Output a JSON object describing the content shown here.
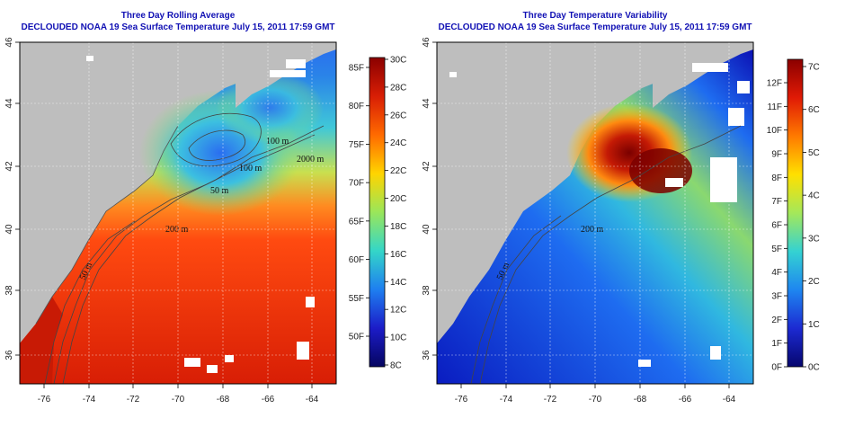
{
  "panels": [
    {
      "title": "Three Day Rolling Average",
      "subtitle": "DECLOUDED NOAA 19 Sea Surface Temperature July 15, 2011 17:59 GMT",
      "x_ticks": [
        "-76",
        "-74",
        "-72",
        "-70",
        "-68",
        "-66",
        "-64"
      ],
      "y_ticks": [
        "36",
        "38",
        "40",
        "42",
        "44",
        "46"
      ],
      "contour_labels": [
        "100 m",
        "2000 m",
        "100 m",
        "50 m",
        "200 m",
        "50 m"
      ],
      "colorbar": {
        "palette": [
          "#8b0000",
          "#d81e05",
          "#ff6a00",
          "#ffd400",
          "#9ae65a",
          "#34d6c8",
          "#1e7ff0",
          "#1c1cc8",
          "#050560"
        ],
        "left_labels": [
          "85F",
          "80F",
          "75F",
          "70F",
          "65F",
          "60F",
          "55F",
          "50F"
        ],
        "right_labels": [
          "30C",
          "28C",
          "26C",
          "24C",
          "22C",
          "20C",
          "18C",
          "16C",
          "14C",
          "12C",
          "10C",
          "8C"
        ]
      }
    },
    {
      "title": "Three Day Temperature Variability",
      "subtitle": "DECLOUDED NOAA 19 Sea Surface Temperature July 15, 2011 17:59 GMT",
      "x_ticks": [
        "-76",
        "-74",
        "-72",
        "-70",
        "-68",
        "-66",
        "-64"
      ],
      "y_ticks": [
        "36",
        "38",
        "40",
        "42",
        "44",
        "46"
      ],
      "contour_labels": [
        "200 m",
        "50 m"
      ],
      "colorbar": {
        "palette": [
          "#8b0000",
          "#e01a05",
          "#ff7a00",
          "#ffe000",
          "#a4e85a",
          "#34d2d2",
          "#1e86f0",
          "#1c2ad2",
          "#06066e"
        ],
        "left_labels": [
          "12F",
          "11F",
          "10F",
          "9F",
          "8F",
          "7F",
          "6F",
          "5F",
          "4F",
          "3F",
          "2F",
          "1F",
          "0F"
        ],
        "right_labels": [
          "7C",
          "6C",
          "5C",
          "4C",
          "3C",
          "2C",
          "1C",
          "0C"
        ]
      }
    }
  ],
  "colors": {
    "land": "#bebebe",
    "title": "#1010b4"
  }
}
